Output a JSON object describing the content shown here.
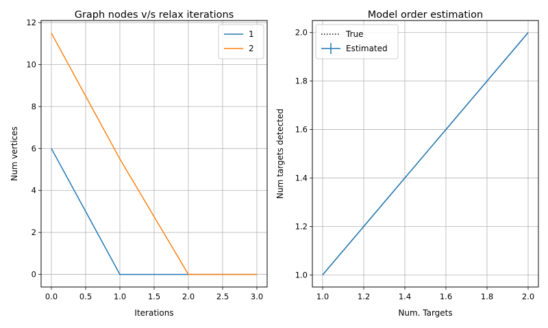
{
  "chart_data": [
    {
      "type": "line",
      "title": "Graph nodes v/s relax iterations",
      "xlabel": "Iterations",
      "ylabel": "Num vertices",
      "xlim": [
        -0.15,
        3.15
      ],
      "ylim": [
        -0.6,
        12.1
      ],
      "xticks": [
        "0.0",
        "0.5",
        "1.0",
        "1.5",
        "2.0",
        "2.5",
        "3.0"
      ],
      "xtick_values": [
        0,
        0.5,
        1,
        1.5,
        2,
        2.5,
        3
      ],
      "yticks": [
        "0",
        "2",
        "4",
        "6",
        "8",
        "10",
        "12"
      ],
      "ytick_values": [
        0,
        2,
        4,
        6,
        8,
        10,
        12
      ],
      "grid": true,
      "legend": "upper right",
      "series": [
        {
          "name": "1",
          "color": "#1f77b4",
          "style": "solid",
          "x": [
            0,
            1,
            2,
            3
          ],
          "y": [
            6,
            0,
            0,
            0
          ]
        },
        {
          "name": "2",
          "color": "#ff7f0e",
          "style": "solid",
          "x": [
            0,
            1,
            2,
            3
          ],
          "y": [
            11.5,
            5.5,
            0,
            0
          ]
        }
      ]
    },
    {
      "type": "line",
      "title": "Model order estimation",
      "xlabel": "Num. Targets",
      "ylabel": "Num targets detected",
      "xlim": [
        0.95,
        2.05
      ],
      "ylim": [
        0.95,
        2.05
      ],
      "xticks": [
        "1.0",
        "1.2",
        "1.4",
        "1.6",
        "1.8",
        "2.0"
      ],
      "xtick_values": [
        1.0,
        1.2,
        1.4,
        1.6,
        1.8,
        2.0
      ],
      "yticks": [
        "1.0",
        "1.2",
        "1.4",
        "1.6",
        "1.8",
        "2.0"
      ],
      "ytick_values": [
        1.0,
        1.2,
        1.4,
        1.6,
        1.8,
        2.0
      ],
      "grid": true,
      "legend": "upper left",
      "series": [
        {
          "name": "True",
          "color": "#000000",
          "style": "dotted",
          "x": [
            1,
            2
          ],
          "y": [
            1,
            2
          ]
        },
        {
          "name": "Estimated",
          "color": "#1f77b4",
          "style": "solid",
          "errorbar": true,
          "x": [
            1,
            2
          ],
          "y": [
            1,
            2
          ]
        }
      ]
    }
  ]
}
